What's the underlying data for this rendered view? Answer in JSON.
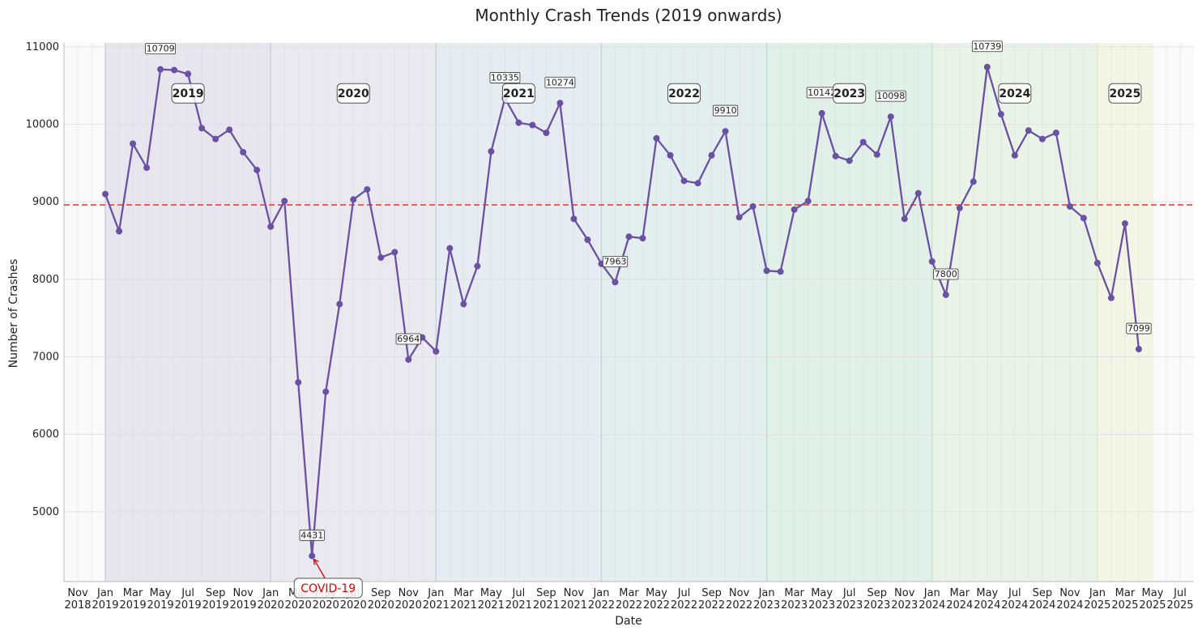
{
  "chart_data": {
    "type": "line",
    "title": "Monthly Crash Trends (2019 onwards)",
    "xlabel": "Date",
    "ylabel": "Number of Crashes",
    "ylim": [
      4100,
      11050
    ],
    "y_ticks": [
      5000,
      6000,
      7000,
      8000,
      9000,
      10000,
      11000
    ],
    "x_range": [
      "2018-10",
      "2025-08"
    ],
    "x_ticks": [
      {
        "date": "2018-11",
        "month": "Nov",
        "year": "2018"
      },
      {
        "date": "2019-01",
        "month": "Jan",
        "year": "2019"
      },
      {
        "date": "2019-03",
        "month": "Mar",
        "year": "2019"
      },
      {
        "date": "2019-05",
        "month": "May",
        "year": "2019"
      },
      {
        "date": "2019-07",
        "month": "Jul",
        "year": "2019"
      },
      {
        "date": "2019-09",
        "month": "Sep",
        "year": "2019"
      },
      {
        "date": "2019-11",
        "month": "Nov",
        "year": "2019"
      },
      {
        "date": "2020-01",
        "month": "Jan",
        "year": "2020"
      },
      {
        "date": "2020-03",
        "month": "Mar",
        "year": "2020"
      },
      {
        "date": "2020-05",
        "month": "May",
        "year": "2020"
      },
      {
        "date": "2020-07",
        "month": "Jul",
        "year": "2020"
      },
      {
        "date": "2020-09",
        "month": "Sep",
        "year": "2020"
      },
      {
        "date": "2020-11",
        "month": "Nov",
        "year": "2020"
      },
      {
        "date": "2021-01",
        "month": "Jan",
        "year": "2021"
      },
      {
        "date": "2021-03",
        "month": "Mar",
        "year": "2021"
      },
      {
        "date": "2021-05",
        "month": "May",
        "year": "2021"
      },
      {
        "date": "2021-07",
        "month": "Jul",
        "year": "2021"
      },
      {
        "date": "2021-09",
        "month": "Sep",
        "year": "2021"
      },
      {
        "date": "2021-11",
        "month": "Nov",
        "year": "2021"
      },
      {
        "date": "2022-01",
        "month": "Jan",
        "year": "2022"
      },
      {
        "date": "2022-03",
        "month": "Mar",
        "year": "2022"
      },
      {
        "date": "2022-05",
        "month": "May",
        "year": "2022"
      },
      {
        "date": "2022-07",
        "month": "Jul",
        "year": "2022"
      },
      {
        "date": "2022-09",
        "month": "Sep",
        "year": "2022"
      },
      {
        "date": "2022-11",
        "month": "Nov",
        "year": "2022"
      },
      {
        "date": "2023-01",
        "month": "Jan",
        "year": "2023"
      },
      {
        "date": "2023-03",
        "month": "Mar",
        "year": "2023"
      },
      {
        "date": "2023-05",
        "month": "May",
        "year": "2023"
      },
      {
        "date": "2023-07",
        "month": "Jul",
        "year": "2023"
      },
      {
        "date": "2023-09",
        "month": "Sep",
        "year": "2023"
      },
      {
        "date": "2023-11",
        "month": "Nov",
        "year": "2023"
      },
      {
        "date": "2024-01",
        "month": "Jan",
        "year": "2024"
      },
      {
        "date": "2024-03",
        "month": "Mar",
        "year": "2024"
      },
      {
        "date": "2024-05",
        "month": "May",
        "year": "2024"
      },
      {
        "date": "2024-07",
        "month": "Jul",
        "year": "2024"
      },
      {
        "date": "2024-09",
        "month": "Sep",
        "year": "2024"
      },
      {
        "date": "2024-11",
        "month": "Nov",
        "year": "2024"
      },
      {
        "date": "2025-01",
        "month": "Jan",
        "year": "2025"
      },
      {
        "date": "2025-03",
        "month": "Mar",
        "year": "2025"
      },
      {
        "date": "2025-05",
        "month": "May",
        "year": "2025"
      },
      {
        "date": "2025-07",
        "month": "Jul",
        "year": "2025"
      }
    ],
    "series": [
      {
        "color": "#6a51a3",
        "x": [
          "2019-01",
          "2019-02",
          "2019-03",
          "2019-04",
          "2019-05",
          "2019-06",
          "2019-07",
          "2019-08",
          "2019-09",
          "2019-10",
          "2019-11",
          "2019-12",
          "2020-01",
          "2020-02",
          "2020-03",
          "2020-04",
          "2020-05",
          "2020-06",
          "2020-07",
          "2020-08",
          "2020-09",
          "2020-10",
          "2020-11",
          "2020-12",
          "2021-01",
          "2021-02",
          "2021-03",
          "2021-04",
          "2021-05",
          "2021-06",
          "2021-07",
          "2021-08",
          "2021-09",
          "2021-10",
          "2021-11",
          "2021-12",
          "2022-01",
          "2022-02",
          "2022-03",
          "2022-04",
          "2022-05",
          "2022-06",
          "2022-07",
          "2022-08",
          "2022-09",
          "2022-10",
          "2022-11",
          "2022-12",
          "2023-01",
          "2023-02",
          "2023-03",
          "2023-04",
          "2023-05",
          "2023-06",
          "2023-07",
          "2023-08",
          "2023-09",
          "2023-10",
          "2023-11",
          "2023-12",
          "2024-01",
          "2024-02",
          "2024-03",
          "2024-04",
          "2024-05",
          "2024-06",
          "2024-07",
          "2024-08",
          "2024-09",
          "2024-10",
          "2024-11",
          "2024-12",
          "2025-01",
          "2025-02",
          "2025-03",
          "2025-04"
        ],
        "y": [
          9100,
          8620,
          9750,
          9440,
          10709,
          10700,
          10650,
          9950,
          9810,
          9930,
          9640,
          9410,
          8680,
          9010,
          6670,
          4431,
          6550,
          7680,
          9030,
          9160,
          8280,
          8350,
          6964,
          7250,
          7070,
          8400,
          7680,
          8170,
          9650,
          10335,
          10020,
          9990,
          9890,
          10274,
          8780,
          8510,
          8200,
          7963,
          8550,
          8530,
          9820,
          9600,
          9270,
          9240,
          9600,
          9910,
          8800,
          8940,
          8110,
          8100,
          8900,
          9010,
          10142,
          9590,
          9530,
          9770,
          9610,
          10098,
          8780,
          9110,
          8230,
          7800,
          8920,
          9260,
          10739,
          10130,
          9600,
          9920,
          9810,
          9890,
          8940,
          8790,
          8210,
          7760,
          8720,
          7099
        ]
      }
    ],
    "mean_line": {
      "value": 8960,
      "color": "#e8413f",
      "style": "dashed"
    },
    "value_labels": [
      {
        "date": "2019-05",
        "value": "10709"
      },
      {
        "date": "2020-04",
        "value": "4431"
      },
      {
        "date": "2020-11",
        "value": "6964"
      },
      {
        "date": "2021-06",
        "value": "10335"
      },
      {
        "date": "2021-10",
        "value": "10274"
      },
      {
        "date": "2022-02",
        "value": "7963"
      },
      {
        "date": "2022-10",
        "value": "9910"
      },
      {
        "date": "2023-05",
        "value": "10142"
      },
      {
        "date": "2023-10",
        "value": "10098"
      },
      {
        "date": "2024-02",
        "value": "7800"
      },
      {
        "date": "2024-05",
        "value": "10739"
      },
      {
        "date": "2025-04",
        "value": "7099"
      }
    ],
    "year_bands": [
      {
        "year": "2019",
        "start": "2019-01",
        "end": "2020-01",
        "color": "#7b68a8"
      },
      {
        "year": "2020",
        "start": "2020-01",
        "end": "2021-01",
        "color": "#8e86b8"
      },
      {
        "year": "2021",
        "start": "2021-01",
        "end": "2022-01",
        "color": "#6f9bbf"
      },
      {
        "year": "2022",
        "start": "2022-01",
        "end": "2023-01",
        "color": "#5aaab3"
      },
      {
        "year": "2023",
        "start": "2023-01",
        "end": "2024-01",
        "color": "#55b98f"
      },
      {
        "year": "2024",
        "start": "2024-01",
        "end": "2025-01",
        "color": "#8ccd7a"
      },
      {
        "year": "2025",
        "start": "2025-01",
        "end": "2025-05",
        "color": "#d6e36a"
      }
    ],
    "annotation": {
      "text": "COVID-19",
      "date": "2020-04",
      "value": 4431,
      "color": "#e00000"
    },
    "grid": true
  }
}
